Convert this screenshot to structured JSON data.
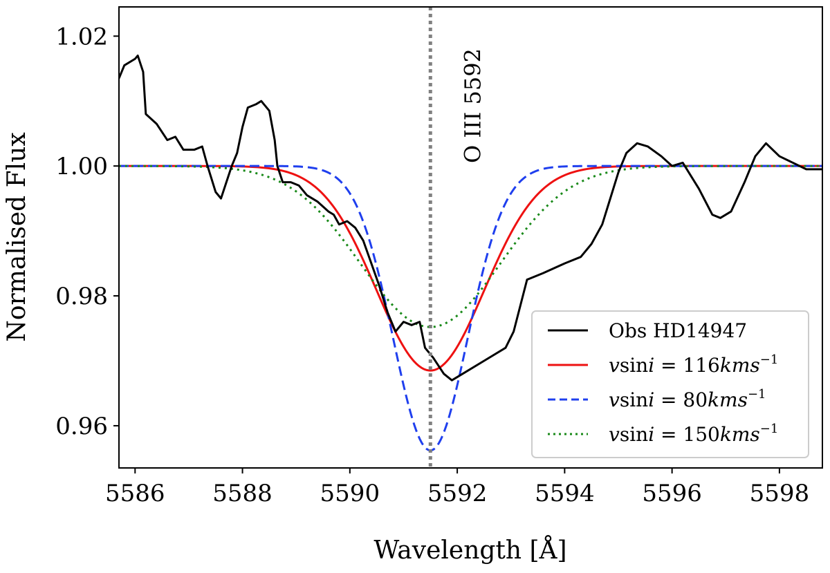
{
  "chart_data": {
    "type": "line",
    "xlabel": "Wavelength [Å]",
    "ylabel": "Normalised Flux",
    "xlim": [
      5585.7,
      5598.8
    ],
    "ylim": [
      0.9535,
      1.0245
    ],
    "xticks": [
      5586,
      5588,
      5590,
      5592,
      5594,
      5596,
      5598
    ],
    "yticks": [
      0.96,
      0.98,
      1.0,
      1.02
    ],
    "ytick_labels": [
      "0.96",
      "0.98",
      "1.00",
      "1.02"
    ],
    "grid": false,
    "legend_position": "lower-right",
    "annotation": {
      "text": "O III 5592",
      "x": 5591.5,
      "line_style": "dotted",
      "color": "#808080"
    },
    "series": [
      {
        "name": "Obs HD14947",
        "color": "#000000",
        "style": "solid",
        "points": [
          [
            5585.7,
            1.0135
          ],
          [
            5585.8,
            1.0155
          ],
          [
            5586.0,
            1.0165
          ],
          [
            5586.05,
            1.017
          ],
          [
            5586.15,
            1.0145
          ],
          [
            5586.2,
            1.008
          ],
          [
            5586.4,
            1.0065
          ],
          [
            5586.6,
            1.004
          ],
          [
            5586.75,
            1.0045
          ],
          [
            5586.9,
            1.0025
          ],
          [
            5587.1,
            1.0025
          ],
          [
            5587.25,
            1.003
          ],
          [
            5587.35,
            1.0
          ],
          [
            5587.5,
            0.996
          ],
          [
            5587.6,
            0.995
          ],
          [
            5587.7,
            0.9975
          ],
          [
            5587.8,
            1.0
          ],
          [
            5587.9,
            1.002
          ],
          [
            5588.0,
            1.006
          ],
          [
            5588.1,
            1.009
          ],
          [
            5588.25,
            1.0095
          ],
          [
            5588.35,
            1.01
          ],
          [
            5588.5,
            1.0085
          ],
          [
            5588.6,
            1.004
          ],
          [
            5588.65,
            1.0
          ],
          [
            5588.75,
            0.9975
          ],
          [
            5588.9,
            0.9975
          ],
          [
            5589.05,
            0.997
          ],
          [
            5589.2,
            0.9955
          ],
          [
            5589.4,
            0.9945
          ],
          [
            5589.6,
            0.993
          ],
          [
            5589.7,
            0.9925
          ],
          [
            5589.8,
            0.991
          ],
          [
            5589.95,
            0.9915
          ],
          [
            5590.1,
            0.9905
          ],
          [
            5590.25,
            0.9885
          ],
          [
            5590.4,
            0.985
          ],
          [
            5590.55,
            0.9815
          ],
          [
            5590.7,
            0.9775
          ],
          [
            5590.85,
            0.9745
          ],
          [
            5591.0,
            0.976
          ],
          [
            5591.15,
            0.9755
          ],
          [
            5591.3,
            0.976
          ],
          [
            5591.4,
            0.972
          ],
          [
            5591.55,
            0.9705
          ],
          [
            5591.75,
            0.968
          ],
          [
            5591.9,
            0.967
          ],
          [
            5592.1,
            0.968
          ],
          [
            5592.5,
            0.97
          ],
          [
            5592.9,
            0.972
          ],
          [
            5593.05,
            0.9745
          ],
          [
            5593.3,
            0.9825
          ],
          [
            5593.6,
            0.9835
          ],
          [
            5594.0,
            0.985
          ],
          [
            5594.3,
            0.986
          ],
          [
            5594.5,
            0.988
          ],
          [
            5594.7,
            0.991
          ],
          [
            5594.85,
            0.995
          ],
          [
            5595.0,
            0.999
          ],
          [
            5595.15,
            1.002
          ],
          [
            5595.35,
            1.0035
          ],
          [
            5595.55,
            1.003
          ],
          [
            5595.8,
            1.0015
          ],
          [
            5596.0,
            1.0
          ],
          [
            5596.2,
            1.0005
          ],
          [
            5596.5,
            0.9965
          ],
          [
            5596.75,
            0.9925
          ],
          [
            5596.9,
            0.992
          ],
          [
            5597.1,
            0.993
          ],
          [
            5597.35,
            0.9975
          ],
          [
            5597.55,
            1.0015
          ],
          [
            5597.75,
            1.0035
          ],
          [
            5598.0,
            1.0015
          ],
          [
            5598.25,
            1.0005
          ],
          [
            5598.5,
            0.9995
          ],
          [
            5598.8,
            0.9995
          ]
        ]
      },
      {
        "name": "vsini = 116kms−1",
        "label_prefix": "v",
        "label_main": "sin",
        "label_i": "i",
        "label_eq": " = 116",
        "label_unit": "kms",
        "label_exp": "−1",
        "color": "#ee1111",
        "style": "solid",
        "center": 5591.5,
        "depth": 0.0315,
        "width": 1.42
      },
      {
        "name": "vsini = 80kms−1",
        "label_prefix": "v",
        "label_main": "sin",
        "label_i": "i",
        "label_eq": " = 80",
        "label_unit": "kms",
        "label_exp": "−1",
        "color": "#1f3fee",
        "style": "dashed",
        "center": 5591.5,
        "depth": 0.0438,
        "width": 0.98
      },
      {
        "name": "vsini = 150kms−1",
        "label_prefix": "v",
        "label_main": "sin",
        "label_i": "i",
        "label_eq": " = 150",
        "label_unit": "kms",
        "label_exp": "−1",
        "color": "#1a8a1a",
        "style": "dotted",
        "center": 5591.5,
        "depth": 0.0248,
        "width": 1.84
      }
    ]
  }
}
